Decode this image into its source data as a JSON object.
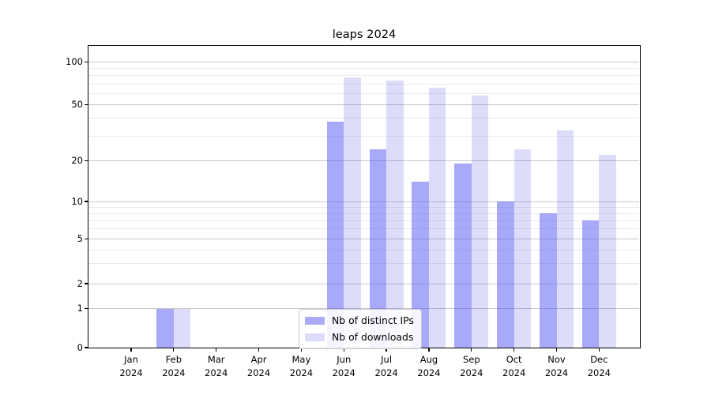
{
  "title": "leaps 2024",
  "chart_data": {
    "type": "bar",
    "title": "leaps 2024",
    "categories": [
      "Jan 2024",
      "Feb 2024",
      "Mar 2024",
      "Apr 2024",
      "May 2024",
      "Jun 2024",
      "Jul 2024",
      "Aug 2024",
      "Sep 2024",
      "Oct 2024",
      "Nov 2024",
      "Dec 2024"
    ],
    "series": [
      {
        "name": "Nb of distinct IPs",
        "color": "#aaaaf7",
        "fill_rgba": "rgba(90,90,245,0.52)",
        "values": [
          0,
          1,
          0,
          0,
          0,
          38,
          24,
          14,
          19,
          10,
          8,
          7
        ]
      },
      {
        "name": "Nb of downloads",
        "color": "#dcdcfa",
        "fill_rgba": "rgba(85,85,230,0.2)",
        "values": [
          0,
          1,
          0,
          0,
          0,
          78,
          74,
          66,
          58,
          24,
          33,
          22
        ]
      }
    ],
    "xlabel": "",
    "ylabel": "",
    "yscale": "symlog",
    "ylim": [
      0,
      130
    ],
    "y_major_ticks": [
      0,
      1,
      2,
      5,
      10,
      20,
      50,
      100
    ],
    "y_minor_gridlines": [
      3,
      4,
      6,
      7,
      8,
      9,
      30,
      40,
      60,
      70,
      80,
      90
    ],
    "grid": true,
    "legend_position": "lower center inside"
  }
}
